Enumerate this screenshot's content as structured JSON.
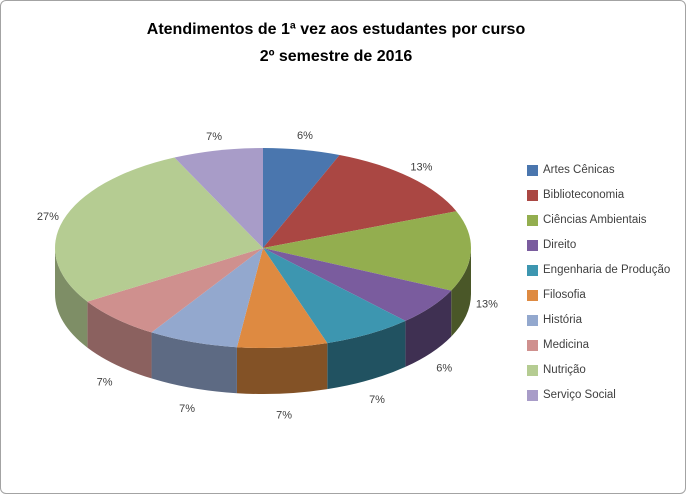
{
  "chart_data": {
    "type": "pie",
    "pie_style": "3d",
    "title": "Atendimentos de 1ª vez aos estudantes por curso 2º semestre de 2016",
    "title_lines": [
      "Atendimentos de 1ª vez aos estudantes por curso",
      "2º semestre de 2016"
    ],
    "categories": [
      "Artes Cênicas",
      "Biblioteconomia",
      "Ciências Ambientais",
      "Direito",
      "Engenharia de Produção",
      "Filosofia",
      "História",
      "Medicina",
      "Nutrição",
      "Serviço Social"
    ],
    "values": [
      6,
      13,
      13,
      6,
      7,
      7,
      7,
      7,
      27,
      7
    ],
    "percent_labels": [
      "6%",
      "13%",
      "13%",
      "6%",
      "7%",
      "7%",
      "7%",
      "7%",
      "27%",
      "7%"
    ],
    "colors": [
      "#4A76AE",
      "#AA4743",
      "#93AE4F",
      "#7A5C9E",
      "#3D96B0",
      "#DE8A41",
      "#93A8CE",
      "#CF908E",
      "#B5CC92",
      "#A89CC8"
    ],
    "start_angle_deg": 0,
    "direction": "clockwise",
    "legend_position": "right",
    "label_color": "#3F3F3F",
    "title_color": "#000000",
    "frame_border_color": "#A3A3A3",
    "background_color": "#FFFFFF"
  }
}
